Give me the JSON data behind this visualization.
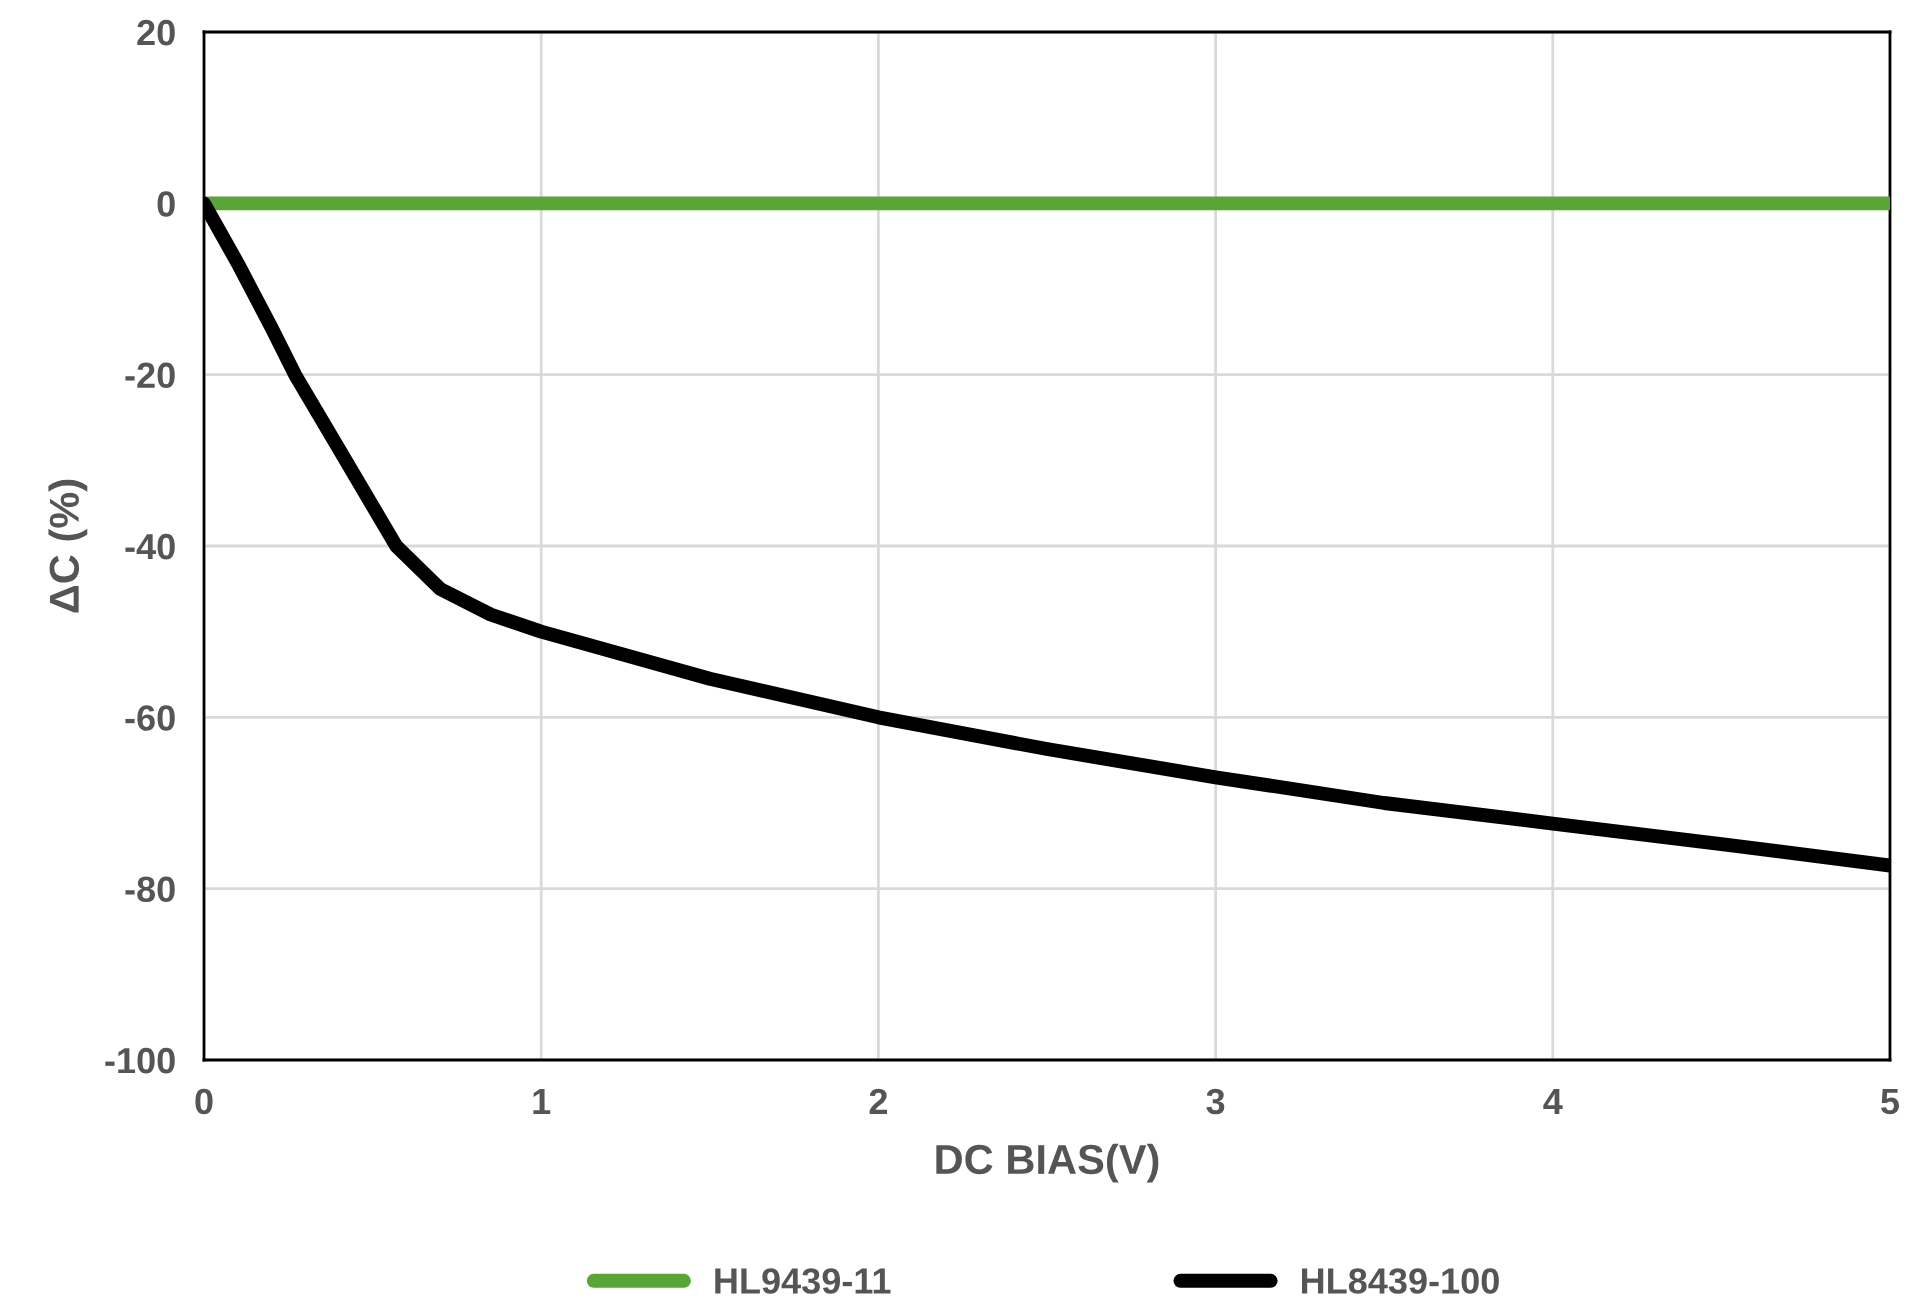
{
  "chart_data": {
    "type": "line",
    "xlabel": "DC BIAS(V)",
    "ylabel": "ΔC (%)",
    "xlim": [
      0,
      5
    ],
    "xticks": [
      0,
      1,
      2,
      3,
      4,
      5
    ],
    "ylim": [
      -100,
      20
    ],
    "yticks": [
      -100,
      -80,
      -60,
      -40,
      -20,
      0,
      20
    ],
    "grid": true,
    "legend": "bottom",
    "marker": "none",
    "line_style": "solid",
    "series": [
      {
        "name": "HL9439-11",
        "color": "#5aa537",
        "x": [
          0,
          5
        ],
        "values": [
          0,
          0
        ]
      },
      {
        "name": "HL8439-100",
        "color": "#000000",
        "x": [
          0,
          0.1,
          0.2,
          0.27,
          0.42,
          0.57,
          0.7,
          0.85,
          1,
          1.5,
          2,
          2.5,
          3,
          3.5,
          4,
          4.5,
          5
        ],
        "values": [
          0,
          -7,
          -14.5,
          -20,
          -30,
          -40,
          -45,
          -48,
          -50,
          -55.5,
          -60,
          -63.7,
          -67,
          -70,
          -72.4,
          -74.8,
          -77.3
        ]
      }
    ]
  }
}
